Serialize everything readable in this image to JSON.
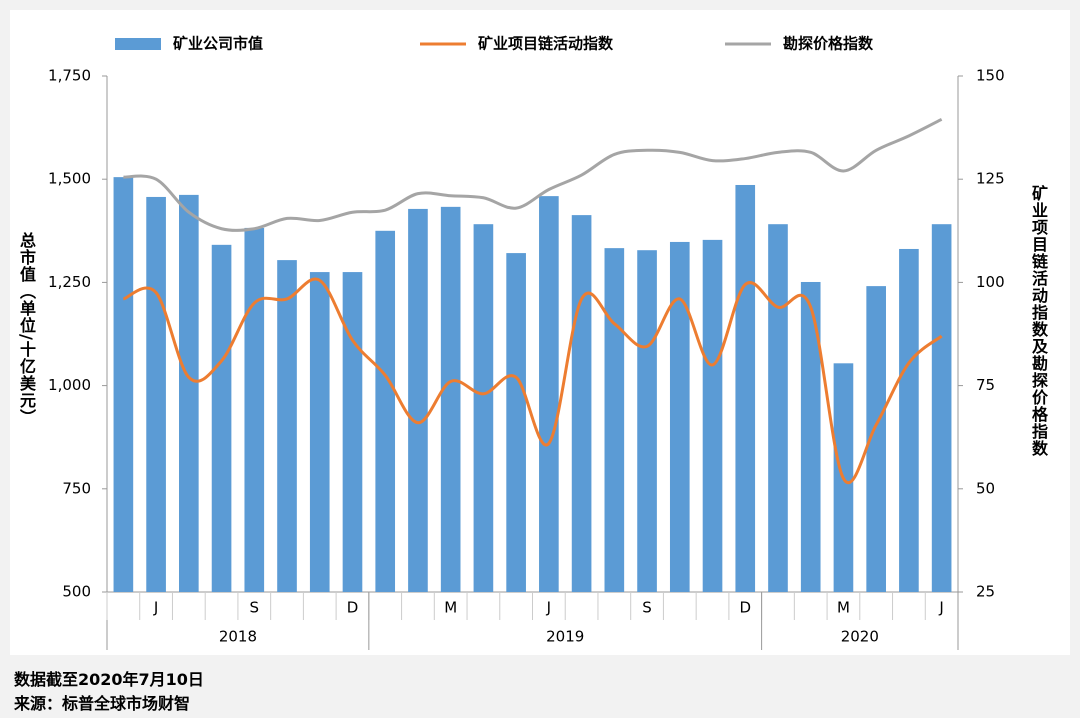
{
  "chart_data": {
    "type": "bar_line",
    "categories": [
      null,
      "J",
      null,
      null,
      "S",
      null,
      null,
      "D",
      null,
      null,
      "M",
      null,
      null,
      "J",
      null,
      null,
      "S",
      null,
      null,
      "D",
      null,
      null,
      "M",
      null,
      null,
      "J"
    ],
    "year_labels": [
      "2018",
      "2019",
      "2020"
    ],
    "series": [
      {
        "name": "矿业公司市值",
        "type": "bar",
        "color": "#5b9bd5",
        "axis": "y",
        "values": [
          1505,
          1457,
          1462,
          1341,
          1382,
          1304,
          1275,
          1275,
          1375,
          1428,
          1433,
          1391,
          1321,
          1459,
          1413,
          1333,
          1328,
          1348,
          1353,
          1486,
          1391,
          1251,
          1054,
          1241,
          1331,
          1391
        ]
      },
      {
        "name": "矿业项目链活动指数",
        "type": "line",
        "color": "#ed7d31",
        "axis": "y2",
        "values": [
          96,
          97.5,
          77,
          81,
          95,
          96,
          100.5,
          86,
          77.5,
          66,
          76,
          73,
          77,
          61,
          96,
          90,
          84.5,
          96,
          80,
          99.5,
          94,
          94,
          52.5,
          65.5,
          80.5,
          87
        ]
      },
      {
        "name": "勘探价格指数",
        "type": "line",
        "color": "#a5a5a5",
        "axis": "y2",
        "values": [
          125.5,
          125,
          117,
          113,
          113,
          115.5,
          115,
          117,
          117.5,
          121.5,
          121,
          120.5,
          118,
          122.5,
          126,
          131,
          132,
          131.5,
          129.5,
          130,
          131.5,
          131.5,
          127,
          132,
          135.5,
          139.5
        ]
      }
    ],
    "ylabel": "总市值（单位/十亿美元）",
    "y2label": "矿业项目链活动指数及勘探价格指数",
    "ylim": [
      500,
      1750
    ],
    "yticks": [
      500,
      {
        "value": 750,
        "label": "750"
      },
      {
        "value": 1000,
        "label": "1,000"
      },
      {
        "value": 1250,
        "label": "1,250"
      },
      {
        "value": 1500,
        "label": "1,500"
      },
      {
        "value": 1750,
        "label": "1,750"
      }
    ],
    "y2lim": [
      25,
      150
    ],
    "y2ticks": [
      25,
      50,
      75,
      100,
      125,
      150
    ],
    "notes": [
      "数据截至2020年7月10日",
      "来源：标普全球市场财智"
    ]
  }
}
